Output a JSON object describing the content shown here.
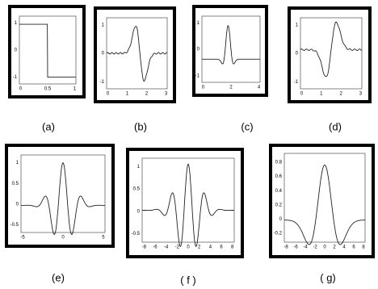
{
  "panels": [
    {
      "label": "(a)",
      "xticks": [
        0,
        0.5,
        1
      ],
      "yticks": [
        1,
        0,
        -1
      ]
    },
    {
      "label": "(b)",
      "xticks": [
        0,
        1,
        2,
        3
      ],
      "yticks": [
        1,
        0,
        -1
      ]
    },
    {
      "label": "(c)",
      "xticks": [
        0,
        2,
        4
      ],
      "yticks": [
        1,
        0,
        -1
      ]
    },
    {
      "label": "(d)",
      "xticks": [
        0,
        1,
        2,
        3
      ],
      "yticks": [
        1,
        0,
        -1
      ]
    },
    {
      "label": "(e)",
      "xticks": [
        -5,
        0,
        5
      ],
      "yticks": [
        1,
        0.5,
        0,
        -0.5
      ]
    },
    {
      "label": "( f )",
      "xticks": [
        -8,
        -6,
        -4,
        -2,
        0,
        2,
        4,
        6,
        8
      ],
      "yticks": [
        1,
        0.5,
        0,
        -0.5
      ]
    },
    {
      "label": "( g)",
      "xticks": [
        -8,
        -6,
        -4,
        -2,
        0,
        2,
        4,
        6,
        8
      ],
      "yticks": [
        0.8,
        0.6,
        0.4,
        0.2,
        0,
        -0.2
      ]
    }
  ]
}
